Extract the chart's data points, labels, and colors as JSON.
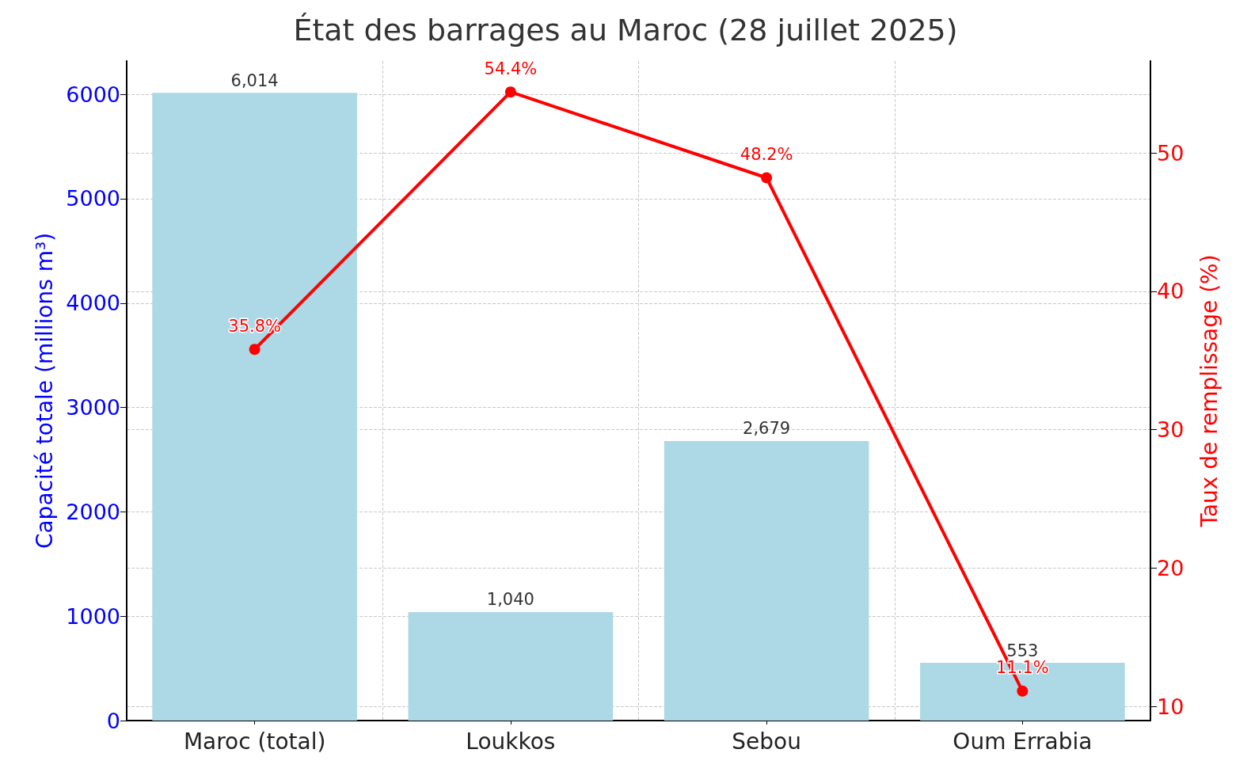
{
  "chart_data": {
    "type": "bar",
    "title": "État des barrages au Maroc (28 juillet 2025)",
    "categories": [
      "Maroc (total)",
      "Loukkos",
      "Sebou",
      "Oum Errabia"
    ],
    "ylabel": "Capacité totale (millions m³)",
    "y2label": "Taux de remplissage (%)",
    "series": [
      {
        "color": "#add8e6",
        "values": [
          6014,
          1040,
          2679,
          553
        ],
        "value_labels": [
          "6,014",
          "1,040",
          "2,679",
          "553"
        ]
      },
      {
        "type": "line",
        "axis": "y2",
        "color": "#ff0000",
        "values": [
          35.8,
          54.4,
          48.2,
          11.1
        ],
        "value_labels": [
          "35.8%",
          "54.4%",
          "48.2%",
          "11.1%"
        ],
        "marker": "circle",
        "line_style": "solid"
      }
    ],
    "ylim": [
      0,
      6320
    ],
    "yticks": [
      0,
      1000,
      2000,
      3000,
      4000,
      5000,
      6000
    ],
    "y2lim": [
      8.97,
      56.64
    ],
    "y2ticks": [
      10,
      20,
      30,
      40,
      50
    ],
    "grid": true
  }
}
